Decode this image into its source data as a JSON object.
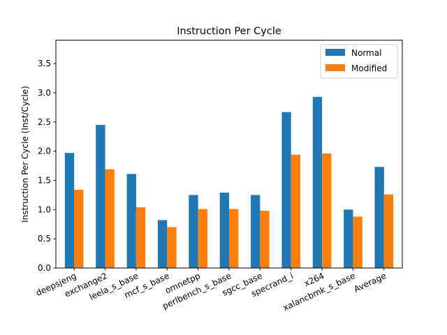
{
  "chart_data": {
    "type": "bar",
    "title": "Instruction Per Cycle",
    "xlabel": "",
    "ylabel": "Instruction Per Cycle (Inst/Cycle)",
    "ylim": [
      0,
      3.9
    ],
    "yticks": [
      "0.0",
      "0.5",
      "1.0",
      "1.5",
      "2.0",
      "2.5",
      "3.0",
      "3.5"
    ],
    "categories": [
      "deepsjeng",
      "exchange2",
      "leela_s_base",
      "mcf_s_base",
      "omnetpp",
      "perlbench_s_base",
      "sgcc_base",
      "specrand_i",
      "x264",
      "xalancbmk_s_base",
      "Average"
    ],
    "series": [
      {
        "name": "Normal",
        "color": "#1f77b4",
        "values": [
          1.97,
          2.45,
          1.61,
          0.82,
          1.25,
          1.29,
          1.25,
          2.67,
          2.93,
          1.0,
          1.73
        ]
      },
      {
        "name": "Modified",
        "color": "#ff7f0e",
        "values": [
          1.34,
          1.69,
          1.04,
          0.7,
          1.01,
          1.01,
          0.98,
          1.94,
          1.96,
          0.88,
          1.26
        ]
      }
    ],
    "grid": false,
    "legend_position": "top-right"
  }
}
